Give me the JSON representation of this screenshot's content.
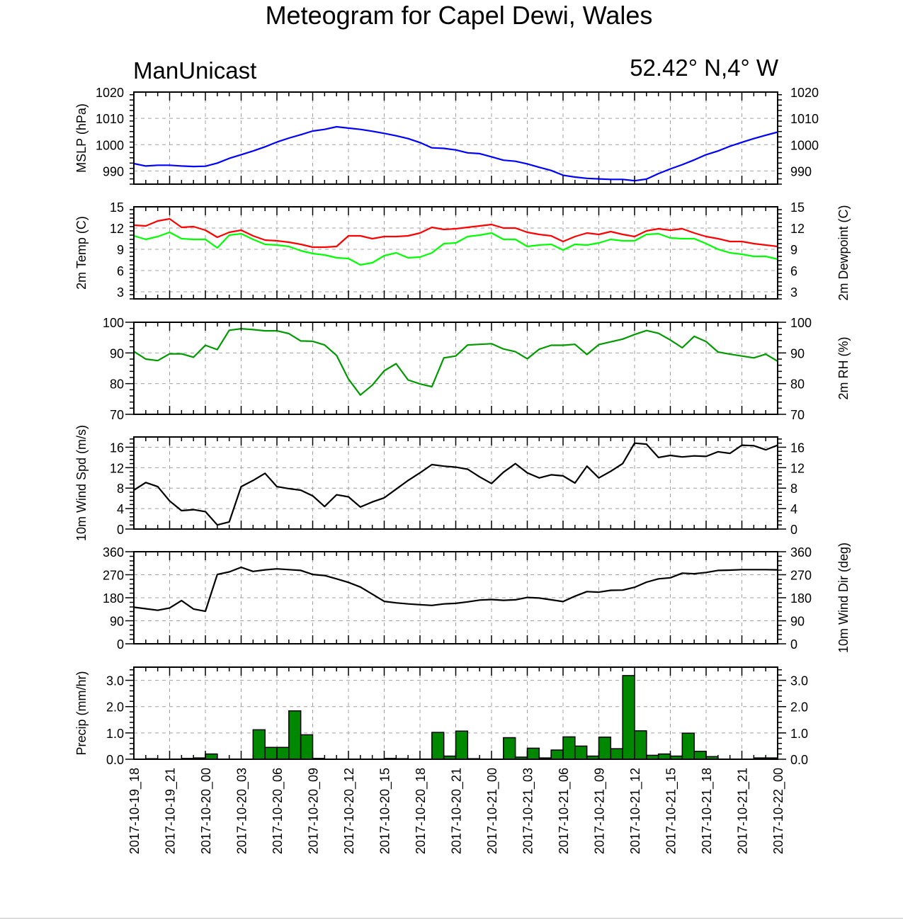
{
  "title": "Meteogram for Capel Dewi, Wales",
  "subtitle_left": "ManUnicast",
  "subtitle_right": "52.42° N,4° W",
  "colors": {
    "mslp": "#0000ff",
    "temp": "#ff0000",
    "dewpoint": "#00ff00",
    "rh": "#009900",
    "wind": "#000000",
    "precip_fill": "#008800",
    "grid": "#a0a0a0"
  },
  "x_tick_labels": [
    "2017-10-19_18",
    "2017-10-19_21",
    "2017-10-20_00",
    "2017-10-20_03",
    "2017-10-20_06",
    "2017-10-20_09",
    "2017-10-20_12",
    "2017-10-20_15",
    "2017-10-20_18",
    "2017-10-20_21",
    "2017-10-21_00",
    "2017-10-21_03",
    "2017-10-21_06",
    "2017-10-21_09",
    "2017-10-21_12",
    "2017-10-21_15",
    "2017-10-21_18",
    "2017-10-21_21",
    "2017-10-22_00"
  ],
  "chart_data": [
    {
      "type": "line",
      "ylabel": "MSLP (hPa)",
      "ylim": [
        985,
        1020
      ],
      "yticks": [
        990,
        1000,
        1010,
        1020
      ],
      "right_axis_labels": true,
      "x": [
        0,
        1,
        2,
        3,
        4,
        5,
        6,
        7,
        8,
        9,
        10,
        11,
        12,
        13,
        14,
        15,
        16,
        17,
        18,
        19,
        20,
        21,
        22,
        23,
        24,
        25,
        26,
        27,
        28,
        29,
        30,
        31,
        32,
        33,
        34,
        35,
        36,
        37,
        38,
        39,
        40,
        41,
        42,
        43,
        44,
        45,
        46,
        47,
        48,
        49,
        50,
        51,
        52,
        53,
        54
      ],
      "series": [
        {
          "key": "mslp",
          "values": [
            992.8,
            991.9,
            992.2,
            992.2,
            991.9,
            991.7,
            991.8,
            993.0,
            994.8,
            996.2,
            997.6,
            999.2,
            1001.0,
            1002.5,
            1003.8,
            1005.2,
            1005.8,
            1006.8,
            1006.3,
            1005.8,
            1005.1,
            1004.3,
            1003.4,
            1002.3,
            1000.8,
            998.8,
            998.6,
            998.0,
            996.9,
            996.6,
            995.4,
            994.1,
            993.7,
            992.7,
            991.4,
            990.2,
            988.4,
            987.7,
            987.2,
            987.0,
            986.8,
            986.8,
            986.3,
            986.9,
            989.0,
            990.8,
            992.4,
            994.2,
            996.2,
            997.6,
            999.4,
            1000.9,
            1002.3,
            1003.6,
            1004.8
          ]
        }
      ]
    },
    {
      "type": "line",
      "ylabel": "2m Temp (C)",
      "ylabel_right": "2m Dewpoint (C)",
      "ylim": [
        2,
        15
      ],
      "yticks": [
        3,
        6,
        9,
        12,
        15
      ],
      "right_axis_labels": true,
      "x": [
        0,
        1,
        2,
        3,
        4,
        5,
        6,
        7,
        8,
        9,
        10,
        11,
        12,
        13,
        14,
        15,
        16,
        17,
        18,
        19,
        20,
        21,
        22,
        23,
        24,
        25,
        26,
        27,
        28,
        29,
        30,
        31,
        32,
        33,
        34,
        35,
        36,
        37,
        38,
        39,
        40,
        41,
        42,
        43,
        44,
        45,
        46,
        47,
        48,
        49,
        50,
        51,
        52,
        53,
        54
      ],
      "series": [
        {
          "key": "temp",
          "values": [
            12.4,
            12.3,
            13.0,
            13.3,
            12.1,
            12.2,
            11.7,
            10.7,
            11.4,
            11.7,
            10.9,
            10.3,
            10.2,
            10.0,
            9.7,
            9.3,
            9.3,
            9.4,
            10.9,
            10.9,
            10.5,
            10.8,
            10.8,
            10.9,
            11.3,
            12.1,
            11.8,
            11.9,
            12.1,
            12.3,
            12.5,
            12.0,
            12.0,
            11.4,
            11.1,
            10.9,
            10.1,
            10.8,
            11.3,
            11.1,
            11.5,
            11.1,
            10.8,
            11.6,
            11.9,
            11.7,
            11.9,
            11.3,
            10.8,
            10.5,
            10.1,
            10.1,
            9.8,
            9.6,
            9.4
          ]
        },
        {
          "key": "dewpoint",
          "values": [
            10.9,
            10.4,
            10.8,
            11.4,
            10.5,
            10.4,
            10.4,
            9.2,
            11.0,
            11.2,
            10.4,
            9.7,
            9.6,
            9.4,
            8.8,
            8.4,
            8.2,
            7.8,
            7.7,
            6.8,
            7.1,
            8.1,
            8.5,
            7.8,
            7.9,
            8.5,
            9.8,
            9.9,
            10.8,
            11.0,
            11.3,
            10.4,
            10.4,
            9.4,
            9.6,
            9.7,
            8.9,
            9.7,
            9.6,
            9.9,
            10.4,
            10.2,
            10.2,
            11.1,
            11.2,
            10.6,
            10.5,
            10.5,
            9.8,
            9.0,
            8.5,
            8.3,
            8.0,
            8.0,
            7.6
          ]
        }
      ]
    },
    {
      "type": "line",
      "ylabel_right": "2m RH (%)",
      "ylim": [
        70,
        100
      ],
      "yticks": [
        70,
        80,
        90,
        100
      ],
      "right_axis_labels": true,
      "x": [
        0,
        1,
        2,
        3,
        4,
        5,
        6,
        7,
        8,
        9,
        10,
        11,
        12,
        13,
        14,
        15,
        16,
        17,
        18,
        19,
        20,
        21,
        22,
        23,
        24,
        25,
        26,
        27,
        28,
        29,
        30,
        31,
        32,
        33,
        34,
        35,
        36,
        37,
        38,
        39,
        40,
        41,
        42,
        43,
        44,
        45,
        46,
        47,
        48,
        49,
        50,
        51,
        52,
        53,
        54
      ],
      "series": [
        {
          "key": "rh",
          "values": [
            90.5,
            88.0,
            87.5,
            89.7,
            89.7,
            88.6,
            92.5,
            91.1,
            97.4,
            97.9,
            97.6,
            97.2,
            97.2,
            96.3,
            93.9,
            93.8,
            92.6,
            89.2,
            81.5,
            76.3,
            79.5,
            84.2,
            86.5,
            81.2,
            79.9,
            79.0,
            88.4,
            89.0,
            92.6,
            92.8,
            93.0,
            91.3,
            90.4,
            88.1,
            91.2,
            92.5,
            92.5,
            92.8,
            89.5,
            92.7,
            93.6,
            94.5,
            96.0,
            97.3,
            96.4,
            94.2,
            91.7,
            95.4,
            93.7,
            90.3,
            89.6,
            89.0,
            88.4,
            89.6,
            87.3
          ]
        }
      ]
    },
    {
      "type": "line",
      "ylabel": "10m Wind Spd (m/s)",
      "ylim": [
        0,
        18
      ],
      "yticks": [
        0,
        4,
        8,
        12,
        16
      ],
      "right_axis_labels": true,
      "x": [
        0,
        1,
        2,
        3,
        4,
        5,
        6,
        7,
        8,
        9,
        10,
        11,
        12,
        13,
        14,
        15,
        16,
        17,
        18,
        19,
        20,
        21,
        22,
        23,
        24,
        25,
        26,
        27,
        28,
        29,
        30,
        31,
        32,
        33,
        34,
        35,
        36,
        37,
        38,
        39,
        40,
        41,
        42,
        43,
        44,
        45,
        46,
        47,
        48,
        49,
        50,
        51,
        52,
        53,
        54
      ],
      "series": [
        {
          "key": "wind",
          "values": [
            7.6,
            9.1,
            8.3,
            5.5,
            3.6,
            3.8,
            3.4,
            0.8,
            1.4,
            8.3,
            9.5,
            10.9,
            8.3,
            7.9,
            7.6,
            6.5,
            4.4,
            6.7,
            6.3,
            4.3,
            5.3,
            6.1,
            7.8,
            9.5,
            11.0,
            12.6,
            12.3,
            12.1,
            11.7,
            10.2,
            8.9,
            11.1,
            12.8,
            11.0,
            10.0,
            10.6,
            10.4,
            9.0,
            12.3,
            10.0,
            11.3,
            12.8,
            16.8,
            16.6,
            14.0,
            14.4,
            14.1,
            14.3,
            14.2,
            15.1,
            14.8,
            16.4,
            16.3,
            15.5,
            16.4
          ]
        }
      ]
    },
    {
      "type": "line",
      "ylabel_right": "10m Wind Dir (deg)",
      "ylim": [
        0,
        360
      ],
      "yticks": [
        0,
        90,
        180,
        270,
        360
      ],
      "right_axis_labels": true,
      "x": [
        0,
        1,
        2,
        3,
        4,
        5,
        6,
        7,
        8,
        9,
        10,
        11,
        12,
        13,
        14,
        15,
        16,
        17,
        18,
        19,
        20,
        21,
        22,
        23,
        24,
        25,
        26,
        27,
        28,
        29,
        30,
        31,
        32,
        33,
        34,
        35,
        36,
        37,
        38,
        39,
        40,
        41,
        42,
        43,
        44,
        45,
        46,
        47,
        48,
        49,
        50,
        51,
        52,
        53,
        54
      ],
      "series": [
        {
          "key": "wind",
          "values": [
            143,
            137,
            131,
            140,
            169,
            136,
            127,
            271,
            281,
            299,
            283,
            289,
            293,
            290,
            287,
            271,
            267,
            254,
            240,
            222,
            194,
            166,
            160,
            156,
            153,
            150,
            156,
            158,
            164,
            171,
            173,
            170,
            172,
            181,
            179,
            172,
            165,
            186,
            204,
            202,
            209,
            210,
            221,
            241,
            254,
            258,
            276,
            274,
            279,
            287,
            288,
            290,
            290,
            290,
            289
          ]
        }
      ]
    },
    {
      "type": "bar",
      "ylabel": "Precip (mm/hr)",
      "ylim": [
        0,
        3.5
      ],
      "yticks": [
        0.0,
        1.0,
        2.0,
        3.0
      ],
      "ytick_labels": [
        "0.0",
        "1.0",
        "2.0",
        "3.0"
      ],
      "right_axis_labels": true,
      "x": [
        0,
        1,
        2,
        3,
        4,
        5,
        6,
        7,
        8,
        9,
        10,
        11,
        12,
        13,
        14,
        15,
        16,
        17,
        18,
        19,
        20,
        21,
        22,
        23,
        24,
        25,
        26,
        27,
        28,
        29,
        30,
        31,
        32,
        33,
        34,
        35,
        36,
        37,
        38,
        39,
        40,
        41,
        42,
        43,
        44,
        45,
        46,
        47,
        48,
        49,
        50,
        51,
        52,
        53,
        54
      ],
      "values": [
        0,
        0.02,
        0,
        0,
        0.03,
        0.05,
        0.2,
        0,
        0,
        0,
        1.12,
        0.45,
        0.45,
        1.84,
        0.93,
        0.03,
        0,
        0,
        0,
        0,
        0,
        0.03,
        0.02,
        0,
        0,
        1.02,
        0.12,
        1.07,
        0.02,
        0,
        0,
        0.82,
        0.08,
        0.42,
        0.05,
        0.35,
        0.85,
        0.5,
        0.12,
        0.84,
        0.4,
        3.18,
        1.08,
        0.15,
        0.2,
        0.12,
        0.99,
        0.3,
        0.1,
        0,
        0,
        0,
        0.05,
        0.05,
        0
      ]
    }
  ]
}
